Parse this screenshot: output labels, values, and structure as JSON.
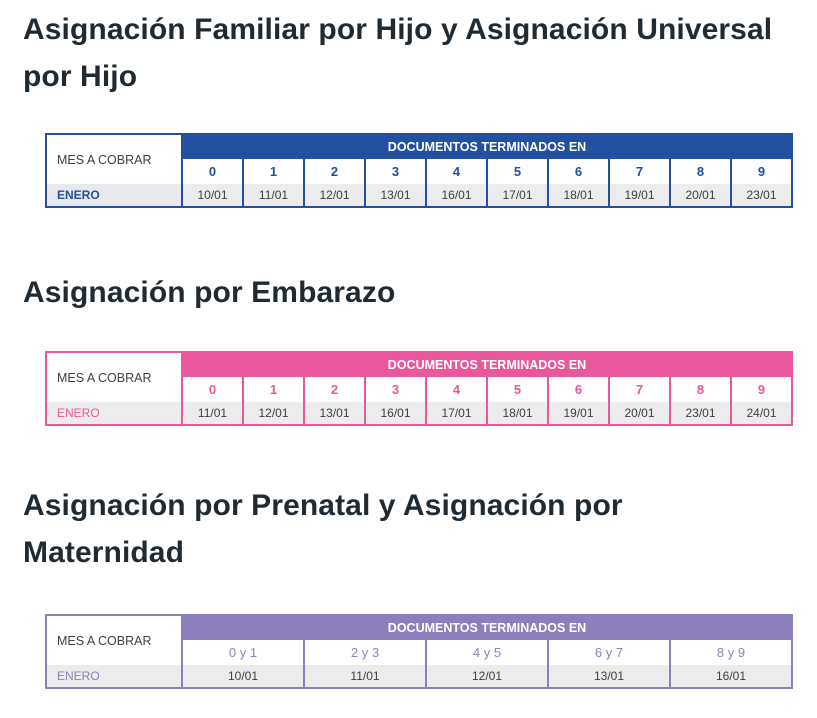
{
  "sections": [
    {
      "heading": "Asignación Familiar por Hijo y Asignación Universal por Hijo",
      "accent": "#2450a0",
      "mes_label": "MES A COBRAR",
      "header_label": "DOCUMENTOS TERMINADOS EN",
      "columns": [
        "0",
        "1",
        "2",
        "3",
        "4",
        "5",
        "6",
        "7",
        "8",
        "9"
      ],
      "row_label": "ENERO",
      "dates": [
        "10/01",
        "11/01",
        "12/01",
        "13/01",
        "16/01",
        "17/01",
        "18/01",
        "19/01",
        "20/01",
        "23/01"
      ]
    },
    {
      "heading": "Asignación por Embarazo",
      "accent": "#e8589b",
      "mes_label": "MES A COBRAR",
      "header_label": "DOCUMENTOS TERMINADOS EN",
      "columns": [
        "0",
        "1",
        "2",
        "3",
        "4",
        "5",
        "6",
        "7",
        "8",
        "9"
      ],
      "row_label": "ENERO",
      "dates": [
        "11/01",
        "12/01",
        "13/01",
        "16/01",
        "17/01",
        "18/01",
        "19/01",
        "20/01",
        "23/01",
        "24/01"
      ]
    },
    {
      "heading": "Asignación por Prenatal y Asignación por Maternidad",
      "accent": "#8d7fbc",
      "mes_label": "MES A COBRAR",
      "header_label": "DOCUMENTOS TERMINADOS EN",
      "columns": [
        "0 y 1",
        "2 y 3",
        "4 y 5",
        "6 y 7",
        "8 y 9"
      ],
      "row_label": "ENERO",
      "dates": [
        "10/01",
        "11/01",
        "12/01",
        "13/01",
        "16/01"
      ]
    }
  ]
}
